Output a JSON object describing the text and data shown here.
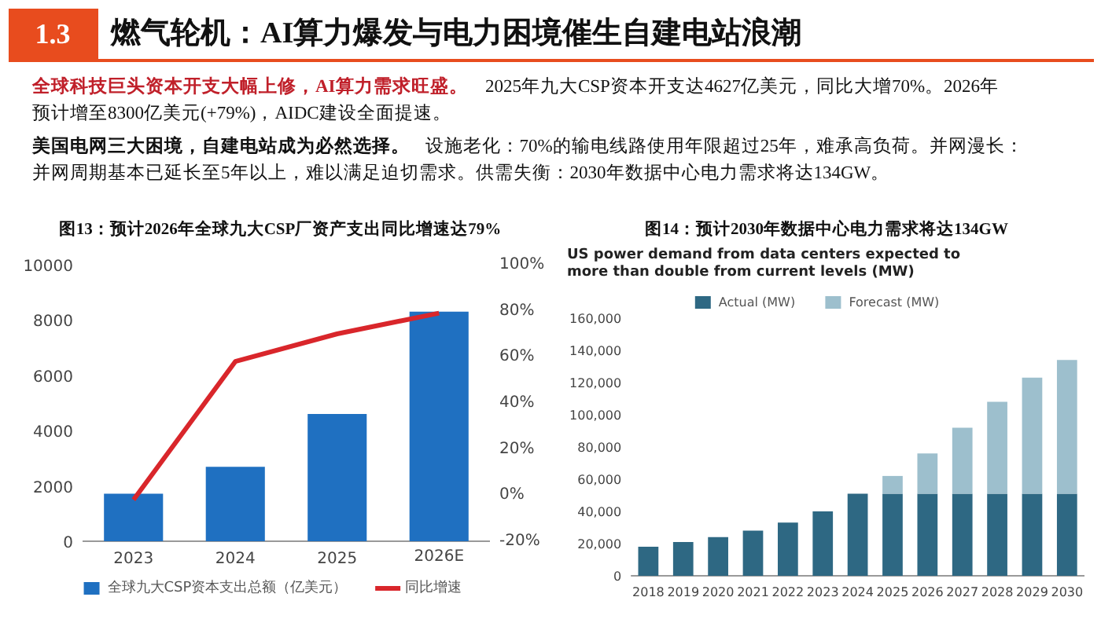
{
  "chart_data": [
    {
      "type": "other",
      "title": "燃气轮机：AI算力爆发与电力困境催生自建电站浪潮",
      "annotations": [
        "1.3",
        "全球科技巨头资本开支大幅上修，AI算力需求旺盛。",
        "2025年九大CSP资本开支达4627亿美元，同比大增70%。2026年预计增至8300亿美元(+79%)，AIDC建设全面提速。",
        "美国电网三大困境，自建电站成为必然选择。",
        "设施老化：70%的输电线路使用年限超过25年，难承高负荷。并网漫长：并网周期基本已延长至5年以上，难以满足迫切需求。供需失衡：2030年数据中心电力需求将达134GW。"
      ]
    },
    {
      "type": "bar",
      "title": "图13：预计2026年全球九大CSP厂资产支出同比增速达79%",
      "categories": [
        "2023",
        "2024",
        "2025",
        "2026E"
      ],
      "series": [
        {
          "name": "全球九大CSP资本支出总额（亿美元）",
          "color": "#1f70c1",
          "values": [
            1720,
            2690,
            4600,
            8300
          ]
        },
        {
          "name": "同比增速",
          "type": "line",
          "axis": "y2",
          "color": "#d9262b",
          "values": [
            -2,
            58,
            70,
            79
          ]
        }
      ],
      "ylim": [
        0,
        10000
      ],
      "yticks": [
        0,
        2000,
        4000,
        6000,
        8000,
        10000
      ],
      "y2lim": [
        -20,
        100
      ],
      "y2ticks": [
        {
          "value": -20,
          "label": "-20%"
        },
        {
          "value": 0,
          "label": "0%"
        },
        {
          "value": 20,
          "label": "20%"
        },
        {
          "value": 40,
          "label": "40%"
        },
        {
          "value": 60,
          "label": "60%"
        },
        {
          "value": 80,
          "label": "80%"
        },
        {
          "value": 100,
          "label": "100%"
        }
      ],
      "legend": "bottom"
    },
    {
      "type": "bar",
      "stacked": true,
      "title": "图14：预计2030年数据中心电力需求将达134GW",
      "subtitle": "US power demand from data centers expected to more than double from current levels (MW)",
      "categories": [
        "2018",
        "2019",
        "2020",
        "2021",
        "2022",
        "2023",
        "2024",
        "2025",
        "2026",
        "2027",
        "2028",
        "2029",
        "2030"
      ],
      "series": [
        {
          "name": "Actual (MW)",
          "color": "#2e6883",
          "values": [
            18000,
            21000,
            24000,
            28000,
            33000,
            40000,
            51000,
            51000,
            51000,
            51000,
            51000,
            51000,
            51000
          ]
        },
        {
          "name": "Forecast (MW)",
          "color": "#9dbfcd",
          "values": [
            null,
            null,
            null,
            null,
            null,
            null,
            null,
            11000,
            25000,
            41000,
            57000,
            72000,
            83000
          ]
        }
      ],
      "ylim": [
        0,
        160000
      ],
      "yticks": [
        {
          "value": 0,
          "label": "0"
        },
        {
          "value": 20000,
          "label": "20,000"
        },
        {
          "value": 40000,
          "label": "40,000"
        },
        {
          "value": 60000,
          "label": "60,000"
        },
        {
          "value": 80000,
          "label": "80,000"
        },
        {
          "value": 100000,
          "label": "100,000"
        },
        {
          "value": 120000,
          "label": "120,000"
        },
        {
          "value": 140000,
          "label": "140,000"
        },
        {
          "value": 160000,
          "label": "160,000"
        }
      ],
      "legend": "top"
    }
  ]
}
